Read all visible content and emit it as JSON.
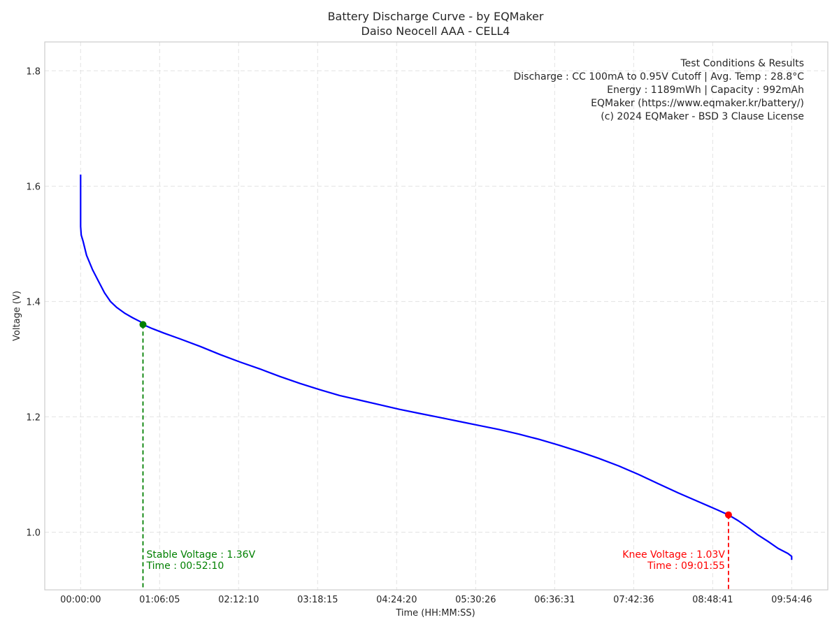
{
  "chart_data": {
    "type": "line",
    "title": "Battery Discharge Curve - by EQMaker",
    "subtitle": "Daiso Neocell AAA - CELL4",
    "xlabel": "Time (HH:MM:SS)",
    "ylabel": "Voltage (V)",
    "xlim_seconds": [
      -1800,
      37500
    ],
    "ylim": [
      0.9,
      1.85
    ],
    "x_ticks": [
      {
        "value": 0,
        "label": "00:00:00"
      },
      {
        "value": 3965,
        "label": "01:06:05"
      },
      {
        "value": 7930,
        "label": "02:12:10"
      },
      {
        "value": 11895,
        "label": "03:18:15"
      },
      {
        "value": 15860,
        "label": "04:24:20"
      },
      {
        "value": 19826,
        "label": "05:30:26"
      },
      {
        "value": 23791,
        "label": "06:36:31"
      },
      {
        "value": 27756,
        "label": "07:42:36"
      },
      {
        "value": 31721,
        "label": "08:48:41"
      },
      {
        "value": 35686,
        "label": "09:54:46"
      }
    ],
    "y_ticks": [
      {
        "value": 1.0,
        "label": "1.0"
      },
      {
        "value": 1.2,
        "label": "1.2"
      },
      {
        "value": 1.4,
        "label": "1.4"
      },
      {
        "value": 1.6,
        "label": "1.6"
      },
      {
        "value": 1.8,
        "label": "1.8"
      }
    ],
    "grid": true,
    "series": [
      {
        "color": "#0000ff",
        "x": [
          0,
          0,
          30,
          120,
          300,
          600,
          900,
          1200,
          1500,
          1800,
          2200,
          2600,
          3000,
          3130,
          3600,
          4200,
          5000,
          6000,
          7000,
          8000,
          9000,
          10000,
          11000,
          12000,
          13000,
          14000,
          15000,
          16000,
          17000,
          18000,
          19000,
          20000,
          21000,
          22000,
          23000,
          24000,
          25000,
          26000,
          27000,
          28000,
          29000,
          30000,
          31000,
          32000,
          32515,
          33000,
          33500,
          34000,
          34500,
          35000,
          35500,
          35686,
          35686
        ],
        "y": [
          1.62,
          1.53,
          1.515,
          1.505,
          1.48,
          1.455,
          1.435,
          1.415,
          1.4,
          1.39,
          1.38,
          1.372,
          1.365,
          1.36,
          1.353,
          1.345,
          1.335,
          1.322,
          1.308,
          1.295,
          1.283,
          1.27,
          1.258,
          1.247,
          1.237,
          1.229,
          1.221,
          1.213,
          1.206,
          1.199,
          1.192,
          1.185,
          1.178,
          1.17,
          1.161,
          1.151,
          1.14,
          1.128,
          1.115,
          1.1,
          1.084,
          1.068,
          1.053,
          1.038,
          1.03,
          1.02,
          1.008,
          0.995,
          0.984,
          0.972,
          0.963,
          0.958,
          0.952
        ]
      }
    ],
    "annotations": [
      {
        "x": 3130,
        "y": 1.36,
        "color": "#008000",
        "lines": [
          "Stable Voltage : 1.36V",
          "Time : 00:52:10"
        ],
        "align": "left"
      },
      {
        "x": 32515,
        "y": 1.03,
        "color": "#ff0000",
        "lines": [
          "Knee Voltage : 1.03V",
          "Time : 09:01:55"
        ],
        "align": "right"
      }
    ],
    "info_box": {
      "placement": "top-right",
      "lines": [
        "Test Conditions & Results",
        "Discharge : CC 100mA to 0.95V Cutoff | Avg. Temp : 28.8°C",
        "Energy : 1189mWh | Capacity : 992mAh",
        "EQMaker (https://www.eqmaker.kr/battery/)",
        "(c) 2024 EQMaker - BSD 3 Clause License"
      ]
    }
  }
}
